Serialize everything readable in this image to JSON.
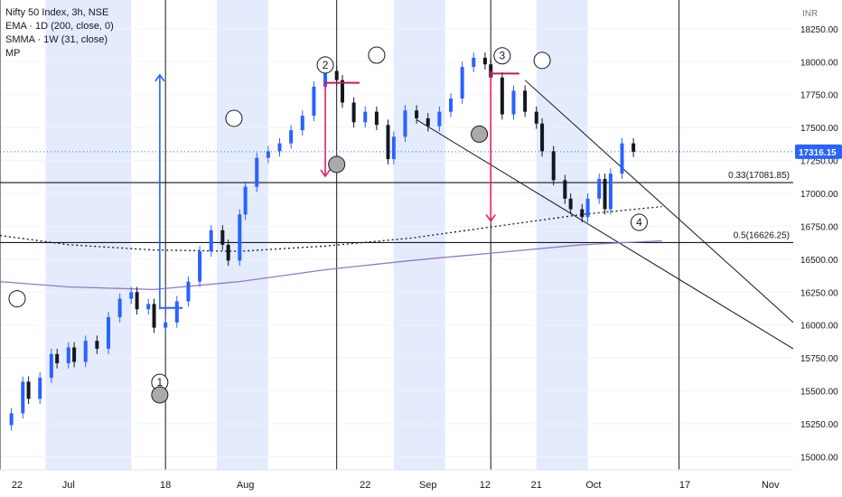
{
  "chart_data": {
    "type": "candlestick",
    "title": "Nifty 50 Index, 3h, NSE",
    "indicators": [
      "EMA · 1D (200, close, 0)",
      "SMMA · 1W (31, close)",
      "MP"
    ],
    "currency": "INR",
    "current_price": "17316.15",
    "y_ticks": [
      "18250.00",
      "18000.00",
      "17750.00",
      "17500.00",
      "17250.00",
      "17000.00",
      "16750.00",
      "16500.00",
      "16250.00",
      "16000.00",
      "15750.00",
      "15500.00",
      "15250.00",
      "15000.00"
    ],
    "y_tick_values": [
      18250,
      18000,
      17750,
      17500,
      17250,
      17000,
      16750,
      16500,
      16250,
      16000,
      15750,
      15500,
      15250,
      15000
    ],
    "ylim": [
      14900,
      18400
    ],
    "x_ticks": [
      "22",
      "Jul",
      "18",
      "Aug",
      "22",
      "Sep",
      "12",
      "21",
      "Oct",
      "17",
      "Nov"
    ],
    "x_tick_days": [
      -9,
      0,
      17,
      31,
      52,
      63,
      73,
      82,
      92,
      108,
      123
    ],
    "xlim": [
      -12,
      127
    ],
    "colors": {
      "up": "#26a69a",
      "down": "#131722",
      "ema": "#9575cd",
      "arrow_up": "#2962ff",
      "arrow_down": "#e91e63",
      "zone": "#e3ebfd",
      "hline": "#131722"
    },
    "shaded_zones": [
      [
        -4,
        11
      ],
      [
        26,
        35
      ],
      [
        57,
        66
      ],
      [
        82,
        91
      ]
    ],
    "vertical_lines": [
      -12,
      17,
      47,
      74,
      107
    ],
    "hlines": [
      {
        "label": "0.33(17081.85)",
        "price": 17081.85
      },
      {
        "label": "0.5(16626.25)",
        "price": 16626.25
      }
    ],
    "wave_labels": [
      {
        "label": "1",
        "day": 16,
        "price": 15565
      },
      {
        "label": "2",
        "day": 45,
        "price": 17975
      },
      {
        "label": "3",
        "day": 76,
        "price": 18045
      },
      {
        "label": "4",
        "day": 100,
        "price": 16780
      }
    ],
    "close_series": [
      {
        "day": -12,
        "price": 15240
      },
      {
        "day": -10,
        "price": 15330
      },
      {
        "day": -8,
        "price": 15570
      },
      {
        "day": -7,
        "price": 15440
      },
      {
        "day": -5,
        "price": 15600
      },
      {
        "day": -3,
        "price": 15780
      },
      {
        "day": -2,
        "price": 15710
      },
      {
        "day": 0,
        "price": 15830
      },
      {
        "day": 1,
        "price": 15720
      },
      {
        "day": 3,
        "price": 15880
      },
      {
        "day": 5,
        "price": 15820
      },
      {
        "day": 7,
        "price": 16060
      },
      {
        "day": 9,
        "price": 16200
      },
      {
        "day": 11,
        "price": 16250
      },
      {
        "day": 12,
        "price": 16120
      },
      {
        "day": 14,
        "price": 16160
      },
      {
        "day": 15,
        "price": 15980
      },
      {
        "day": 17,
        "price": 16020
      },
      {
        "day": 19,
        "price": 16180
      },
      {
        "day": 21,
        "price": 16330
      },
      {
        "day": 23,
        "price": 16560
      },
      {
        "day": 25,
        "price": 16720
      },
      {
        "day": 27,
        "price": 16610
      },
      {
        "day": 28,
        "price": 16490
      },
      {
        "day": 30,
        "price": 16840
      },
      {
        "day": 31,
        "price": 17050
      },
      {
        "day": 33,
        "price": 17270
      },
      {
        "day": 35,
        "price": 17320
      },
      {
        "day": 37,
        "price": 17380
      },
      {
        "day": 39,
        "price": 17480
      },
      {
        "day": 41,
        "price": 17590
      },
      {
        "day": 43,
        "price": 17810
      },
      {
        "day": 45,
        "price": 17930
      },
      {
        "day": 47,
        "price": 17860
      },
      {
        "day": 48,
        "price": 17690
      },
      {
        "day": 50,
        "price": 17540
      },
      {
        "day": 52,
        "price": 17620
      },
      {
        "day": 54,
        "price": 17520
      },
      {
        "day": 56,
        "price": 17260
      },
      {
        "day": 57,
        "price": 17430
      },
      {
        "day": 59,
        "price": 17630
      },
      {
        "day": 61,
        "price": 17570
      },
      {
        "day": 63,
        "price": 17510
      },
      {
        "day": 65,
        "price": 17620
      },
      {
        "day": 67,
        "price": 17720
      },
      {
        "day": 69,
        "price": 17960
      },
      {
        "day": 71,
        "price": 18030
      },
      {
        "day": 73,
        "price": 17980
      },
      {
        "day": 74,
        "price": 17880
      },
      {
        "day": 76,
        "price": 17600
      },
      {
        "day": 78,
        "price": 17780
      },
      {
        "day": 80,
        "price": 17620
      },
      {
        "day": 82,
        "price": 17530
      },
      {
        "day": 83,
        "price": 17320
      },
      {
        "day": 85,
        "price": 17100
      },
      {
        "day": 87,
        "price": 16960
      },
      {
        "day": 88,
        "price": 16880
      },
      {
        "day": 90,
        "price": 16820
      },
      {
        "day": 91,
        "price": 16960
      },
      {
        "day": 93,
        "price": 17110
      },
      {
        "day": 94,
        "price": 16880
      },
      {
        "day": 95,
        "price": 17150
      },
      {
        "day": 97,
        "price": 17380
      },
      {
        "day": 99,
        "price": 17316
      }
    ],
    "ema_series": [
      {
        "day": -12,
        "price": 16330
      },
      {
        "day": 0,
        "price": 16290
      },
      {
        "day": 15,
        "price": 16270
      },
      {
        "day": 30,
        "price": 16330
      },
      {
        "day": 45,
        "price": 16420
      },
      {
        "day": 60,
        "price": 16490
      },
      {
        "day": 75,
        "price": 16550
      },
      {
        "day": 90,
        "price": 16610
      },
      {
        "day": 104,
        "price": 16640
      }
    ],
    "smma_series": [
      {
        "day": -12,
        "price": 16680
      },
      {
        "day": 0,
        "price": 16610
      },
      {
        "day": 15,
        "price": 16570
      },
      {
        "day": 30,
        "price": 16560
      },
      {
        "day": 45,
        "price": 16600
      },
      {
        "day": 60,
        "price": 16660
      },
      {
        "day": 75,
        "price": 16750
      },
      {
        "day": 90,
        "price": 16840
      },
      {
        "day": 104,
        "price": 16900
      }
    ]
  }
}
